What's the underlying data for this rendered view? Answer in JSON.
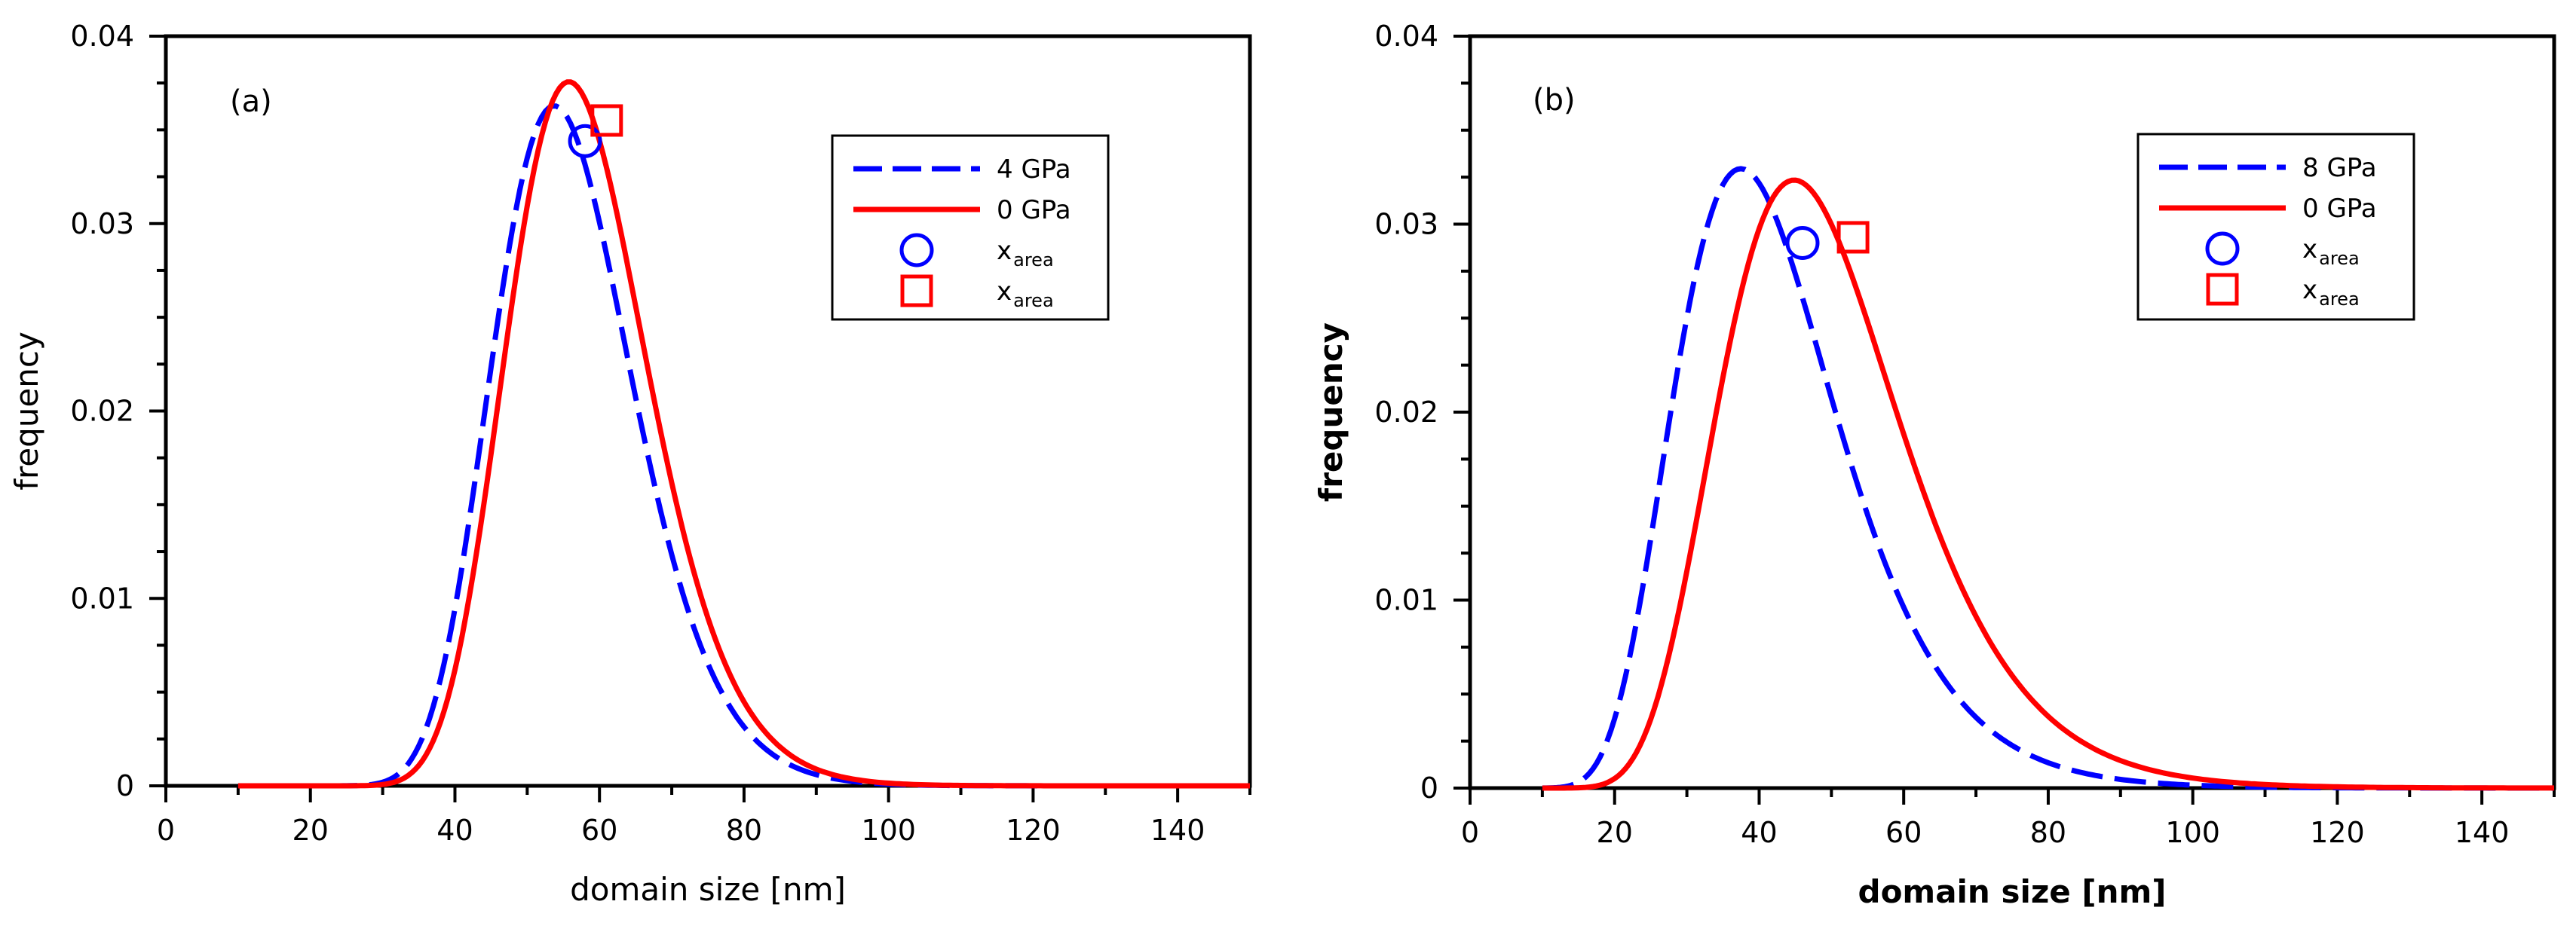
{
  "chart_data": [
    {
      "type": "line",
      "panel_label": "(a)",
      "xlabel": "domain size [nm]",
      "ylabel": "frequency",
      "xlim": [
        0,
        150
      ],
      "ylim": [
        0,
        0.04
      ],
      "xticks": [
        "0",
        "20",
        "40",
        "60",
        "80",
        "100",
        "120",
        "140"
      ],
      "yticks": [
        "0",
        "0.01",
        "0.02",
        "0.03",
        "0.04"
      ],
      "series": [
        {
          "name": "4 GPa",
          "color": "#0000ff",
          "style": "dashed",
          "mode": 55.5,
          "sigma_log": 0.18,
          "peak": 0.0357,
          "x_start": 10
        },
        {
          "name": "0 GPa",
          "color": "#ff0000",
          "style": "solid",
          "mode": 57.5,
          "sigma_log": 0.175,
          "peak": 0.037,
          "x_start": 10
        }
      ],
      "markers": [
        {
          "name": "x_area_4GPa",
          "shape": "circle",
          "color": "#0000ff",
          "x": 58,
          "y": 0.0344
        },
        {
          "name": "x_area_0GPa",
          "shape": "square",
          "color": "#ff0000",
          "x": 61,
          "y": 0.0355
        }
      ],
      "legend": [
        {
          "label": "4 GPa",
          "kind": "dashed-line",
          "color": "#0000ff"
        },
        {
          "label": "0 GPa",
          "kind": "solid-line",
          "color": "#ff0000"
        },
        {
          "label": "x",
          "sub": "area",
          "kind": "circle",
          "color": "#0000ff"
        },
        {
          "label": "x",
          "sub": "area",
          "kind": "square",
          "color": "#ff0000"
        }
      ],
      "legend_position": "top-right"
    },
    {
      "type": "line",
      "panel_label": "(b)",
      "xlabel": "domain size [nm]",
      "ylabel": "frequency",
      "xlim": [
        0,
        150
      ],
      "ylim": [
        0,
        0.04
      ],
      "xticks": [
        "0",
        "20",
        "40",
        "60",
        "80",
        "100",
        "120",
        "140"
      ],
      "yticks": [
        "0",
        "0.01",
        "0.02",
        "0.03",
        "0.04"
      ],
      "series": [
        {
          "name": "8 GPa",
          "color": "#0000ff",
          "style": "dashed",
          "mode": 41,
          "sigma_log": 0.3,
          "peak": 0.0315,
          "x_start": 10
        },
        {
          "name": "0 GPa",
          "color": "#ff0000",
          "style": "solid",
          "mode": 48.5,
          "sigma_log": 0.28,
          "peak": 0.0311,
          "x_start": 10
        }
      ],
      "markers": [
        {
          "name": "x_area_8GPa",
          "shape": "circle",
          "color": "#0000ff",
          "x": 46,
          "y": 0.029
        },
        {
          "name": "x_area_0GPa",
          "shape": "square",
          "color": "#ff0000",
          "x": 53,
          "y": 0.0293
        }
      ],
      "legend": [
        {
          "label": "8 GPa",
          "kind": "dashed-line",
          "color": "#0000ff"
        },
        {
          "label": "0 GPa",
          "kind": "solid-line",
          "color": "#ff0000"
        },
        {
          "label": "x",
          "sub": "area",
          "kind": "circle",
          "color": "#0000ff"
        },
        {
          "label": "x",
          "sub": "area",
          "kind": "square",
          "color": "#ff0000"
        }
      ],
      "legend_position": "top-right"
    }
  ]
}
